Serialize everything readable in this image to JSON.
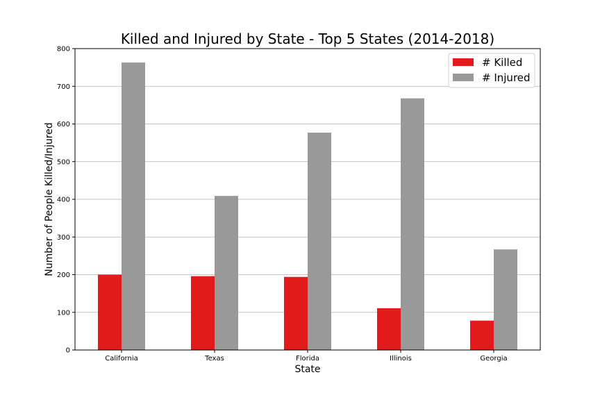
{
  "chart_data": {
    "type": "bar",
    "title": "Killed and Injured by State - Top 5 States (2014-2018)",
    "xlabel": "State",
    "ylabel": "Number of People Killed/Injured",
    "categories": [
      "California",
      "Texas",
      "Florida",
      "Illinois",
      "Georgia"
    ],
    "series": [
      {
        "name": "# Killed",
        "color": "#e31a1c",
        "values": [
          200,
          196,
          194,
          111,
          78
        ]
      },
      {
        "name": "# Injured",
        "color": "#999999",
        "values": [
          763,
          409,
          577,
          668,
          267
        ]
      }
    ],
    "ylim": [
      0,
      800
    ],
    "yticks": [
      0,
      100,
      200,
      300,
      400,
      500,
      600,
      700,
      800
    ],
    "grid": "horizontal",
    "legend_position": "top-right"
  }
}
